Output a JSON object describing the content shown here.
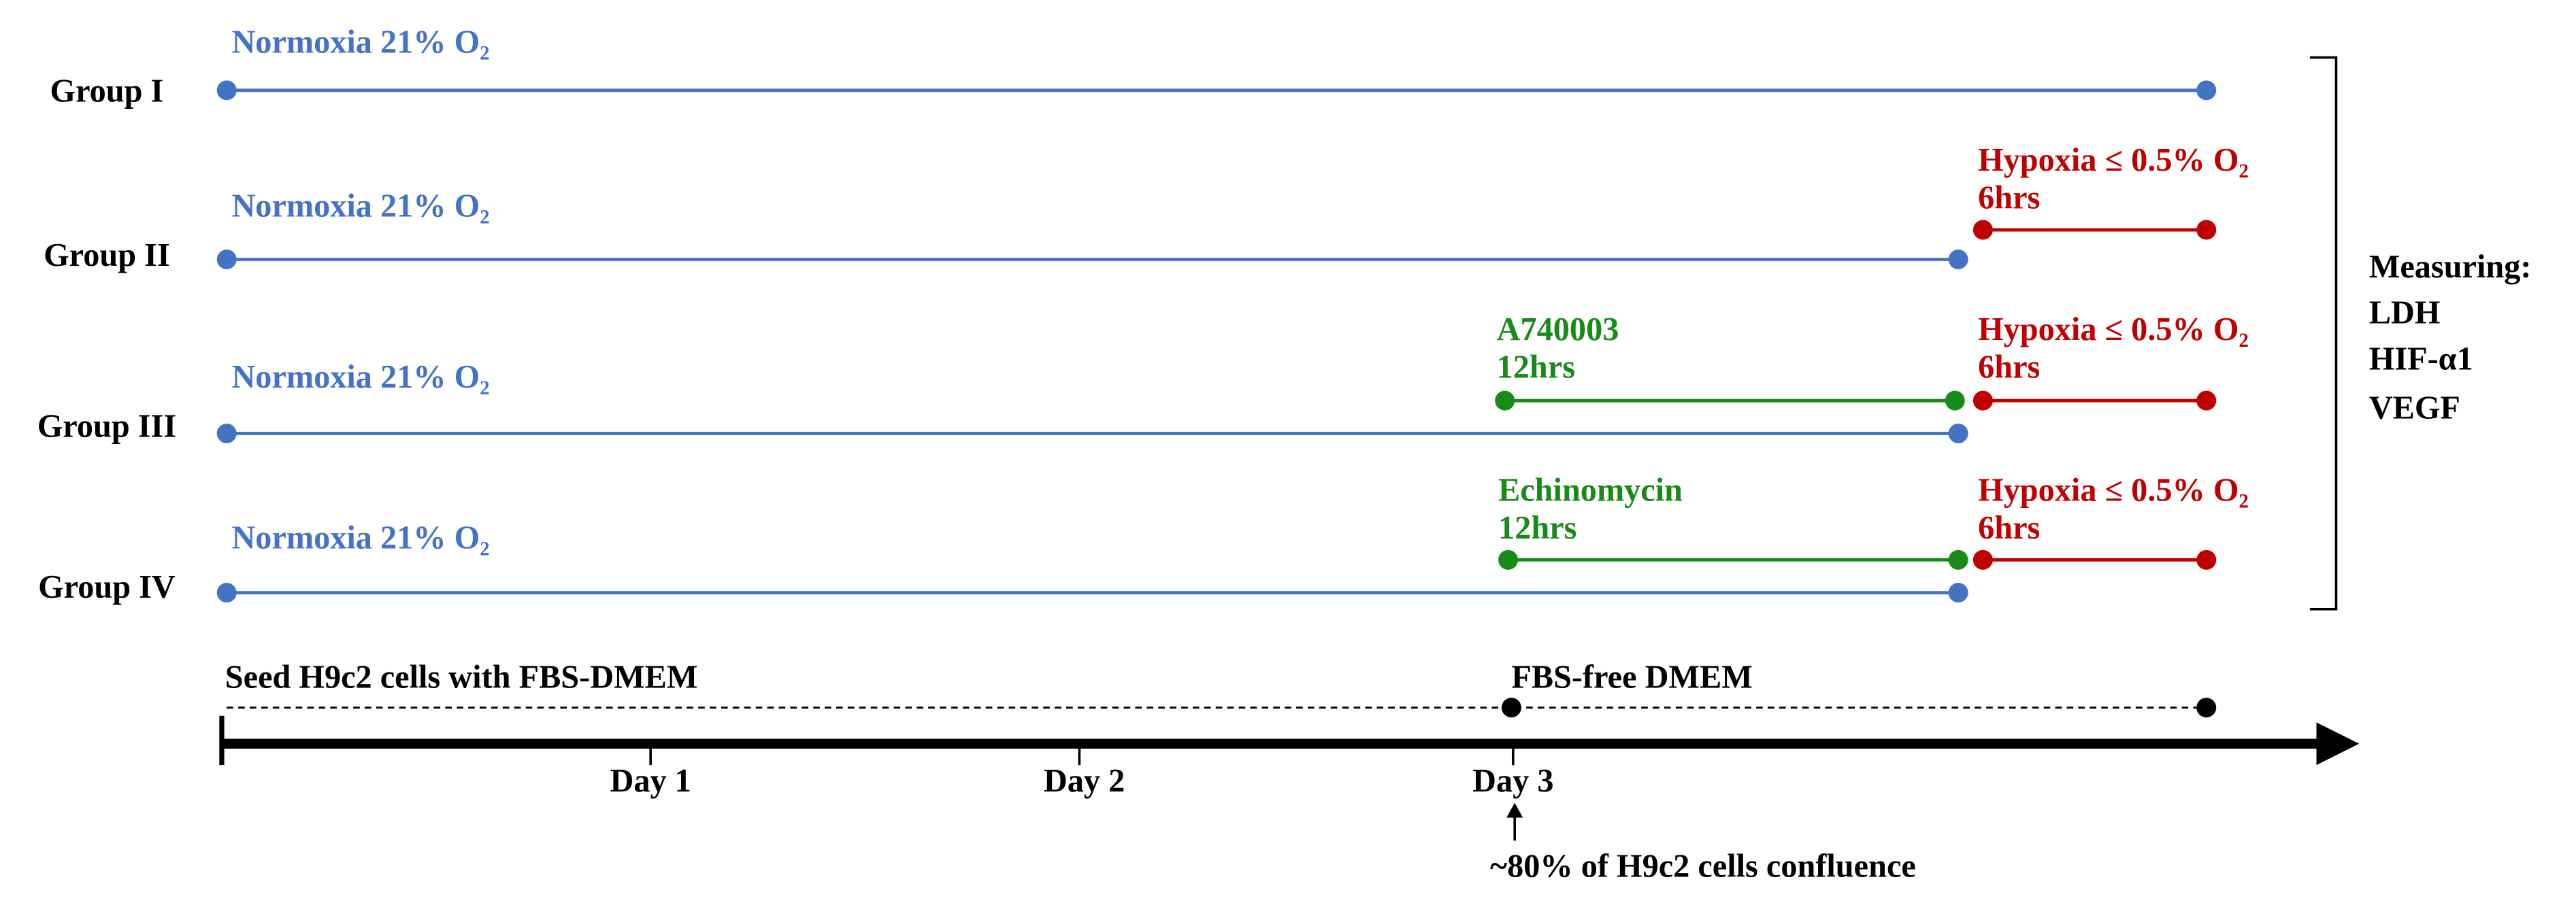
{
  "groups": [
    {
      "label": "Group I",
      "normoxia": "Normoxia 21% O₂"
    },
    {
      "label": "Group II",
      "normoxia": "Normoxia 21% O₂",
      "hypoxia": "Hypoxia ≤ 0.5% O₂",
      "hypoxia_duration": "6hrs"
    },
    {
      "label": "Group III",
      "normoxia": "Normoxia 21% O₂",
      "treatment": "A740003",
      "treatment_duration": "12hrs",
      "hypoxia": "Hypoxia ≤ 0.5% O₂",
      "hypoxia_duration": "6hrs"
    },
    {
      "label": "Group IV",
      "normoxia": "Normoxia 21% O₂",
      "treatment": "Echinomycin",
      "treatment_duration": "12hrs",
      "hypoxia": "Hypoxia ≤ 0.5% O₂",
      "hypoxia_duration": "6hrs"
    }
  ],
  "measuring": {
    "title": "Measuring:",
    "items": [
      "LDH",
      "HIF-α1",
      "VEGF"
    ]
  },
  "timeline": {
    "seed": "Seed H9c2 cells with FBS-DMEM",
    "serum_free": "FBS-free DMEM",
    "days": [
      "Day 1",
      "Day 2",
      "Day 3"
    ],
    "note": "~80% of H9c2 cells confluence"
  }
}
